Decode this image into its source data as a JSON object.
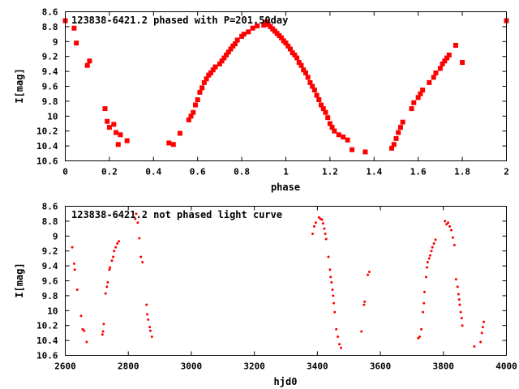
{
  "chart_data": [
    {
      "type": "scatter",
      "title": "123838-6421.2 phased with P=201.50day",
      "xlabel": "phase",
      "ylabel": "I[mag]",
      "xlim": [
        0,
        2
      ],
      "ylim": [
        10.6,
        8.6
      ],
      "x_ticks": [
        0,
        0.2,
        0.4,
        0.6,
        0.8,
        1,
        1.2,
        1.4,
        1.6,
        1.8,
        2
      ],
      "x_tick_labels": [
        "0",
        "0.2",
        "0.4",
        "0.6",
        "0.8",
        "1",
        "1.2",
        "1.4",
        "1.6",
        "1.8",
        "2"
      ],
      "y_ticks": [
        8.6,
        8.8,
        9,
        9.2,
        9.4,
        9.6,
        9.8,
        10,
        10.2,
        10.4,
        10.6
      ],
      "y_tick_labels": [
        "8.6",
        "8.8",
        "9",
        "9.2",
        "9.4",
        "9.6",
        "9.8",
        "10",
        "10.2",
        "10.4",
        "10.6"
      ],
      "marker": "square",
      "color": "#ff0000",
      "points": [
        [
          0.0,
          8.72
        ],
        [
          0.04,
          8.82
        ],
        [
          0.05,
          9.02
        ],
        [
          0.1,
          9.32
        ],
        [
          0.11,
          9.26
        ],
        [
          0.18,
          9.9
        ],
        [
          0.19,
          10.07
        ],
        [
          0.2,
          10.15
        ],
        [
          0.22,
          10.11
        ],
        [
          0.23,
          10.22
        ],
        [
          0.24,
          10.38
        ],
        [
          0.25,
          10.25
        ],
        [
          0.28,
          10.33
        ],
        [
          0.47,
          10.36
        ],
        [
          0.49,
          10.38
        ],
        [
          0.52,
          10.23
        ],
        [
          0.56,
          10.05
        ],
        [
          0.57,
          10.0
        ],
        [
          0.58,
          9.95
        ],
        [
          0.59,
          9.85
        ],
        [
          0.6,
          9.78
        ],
        [
          0.61,
          9.68
        ],
        [
          0.62,
          9.62
        ],
        [
          0.63,
          9.55
        ],
        [
          0.64,
          9.5
        ],
        [
          0.65,
          9.45
        ],
        [
          0.66,
          9.42
        ],
        [
          0.67,
          9.38
        ],
        [
          0.68,
          9.34
        ],
        [
          0.7,
          9.3
        ],
        [
          0.71,
          9.26
        ],
        [
          0.72,
          9.22
        ],
        [
          0.73,
          9.18
        ],
        [
          0.74,
          9.14
        ],
        [
          0.75,
          9.1
        ],
        [
          0.76,
          9.06
        ],
        [
          0.77,
          9.03
        ],
        [
          0.78,
          8.98
        ],
        [
          0.8,
          8.93
        ],
        [
          0.81,
          8.9
        ],
        [
          0.83,
          8.87
        ],
        [
          0.85,
          8.82
        ],
        [
          0.87,
          8.79
        ],
        [
          0.9,
          8.78
        ],
        [
          0.91,
          8.74
        ],
        [
          0.92,
          8.77
        ],
        [
          0.93,
          8.8
        ],
        [
          0.94,
          8.83
        ],
        [
          0.95,
          8.86
        ],
        [
          0.96,
          8.89
        ],
        [
          0.97,
          8.92
        ],
        [
          0.98,
          8.95
        ],
        [
          0.99,
          8.99
        ],
        [
          1.0,
          9.02
        ],
        [
          1.01,
          9.06
        ],
        [
          1.02,
          9.1
        ],
        [
          1.03,
          9.15
        ],
        [
          1.04,
          9.18
        ],
        [
          1.05,
          9.22
        ],
        [
          1.06,
          9.28
        ],
        [
          1.07,
          9.32
        ],
        [
          1.08,
          9.38
        ],
        [
          1.09,
          9.42
        ],
        [
          1.1,
          9.48
        ],
        [
          1.11,
          9.55
        ],
        [
          1.12,
          9.6
        ],
        [
          1.13,
          9.65
        ],
        [
          1.14,
          9.72
        ],
        [
          1.15,
          9.78
        ],
        [
          1.16,
          9.85
        ],
        [
          1.17,
          9.9
        ],
        [
          1.18,
          9.95
        ],
        [
          1.19,
          10.02
        ],
        [
          1.2,
          10.1
        ],
        [
          1.21,
          10.15
        ],
        [
          1.22,
          10.2
        ],
        [
          1.24,
          10.25
        ],
        [
          1.26,
          10.28
        ],
        [
          1.28,
          10.32
        ],
        [
          1.3,
          10.45
        ],
        [
          1.36,
          10.48
        ],
        [
          1.48,
          10.43
        ],
        [
          1.49,
          10.38
        ],
        [
          1.5,
          10.3
        ],
        [
          1.51,
          10.22
        ],
        [
          1.52,
          10.15
        ],
        [
          1.53,
          10.08
        ],
        [
          1.57,
          9.9
        ],
        [
          1.58,
          9.82
        ],
        [
          1.6,
          9.75
        ],
        [
          1.61,
          9.7
        ],
        [
          1.62,
          9.65
        ],
        [
          1.65,
          9.55
        ],
        [
          1.67,
          9.48
        ],
        [
          1.68,
          9.42
        ],
        [
          1.7,
          9.36
        ],
        [
          1.71,
          9.3
        ],
        [
          1.72,
          9.26
        ],
        [
          1.73,
          9.22
        ],
        [
          1.74,
          9.18
        ],
        [
          1.77,
          9.05
        ],
        [
          1.8,
          9.28
        ],
        [
          2.0,
          8.72
        ]
      ]
    },
    {
      "type": "scatter",
      "title": "123838-6421.2 not phased light curve",
      "xlabel": "hjd0",
      "ylabel": "I[mag]",
      "xlim": [
        2600,
        4000
      ],
      "ylim": [
        10.6,
        8.6
      ],
      "x_ticks": [
        2600,
        2800,
        3000,
        3200,
        3400,
        3600,
        3800,
        4000
      ],
      "x_tick_labels": [
        "2600",
        "2800",
        "3000",
        "3200",
        "3400",
        "3600",
        "3800",
        "4000"
      ],
      "y_ticks": [
        8.6,
        8.8,
        9,
        9.2,
        9.4,
        9.6,
        9.8,
        10,
        10.2,
        10.4,
        10.6
      ],
      "y_tick_labels": [
        "8.6",
        "8.8",
        "9",
        "9.2",
        "9.4",
        "9.6",
        "9.8",
        "10",
        "10.2",
        "10.4",
        "10.6"
      ],
      "marker": "dot",
      "color": "#ff0000",
      "points": [
        [
          2622,
          9.15
        ],
        [
          2628,
          9.37
        ],
        [
          2630,
          9.45
        ],
        [
          2638,
          9.72
        ],
        [
          2650,
          10.07
        ],
        [
          2655,
          10.25
        ],
        [
          2660,
          10.27
        ],
        [
          2668,
          10.42
        ],
        [
          2718,
          10.32
        ],
        [
          2720,
          10.28
        ],
        [
          2722,
          10.18
        ],
        [
          2728,
          9.77
        ],
        [
          2732,
          9.68
        ],
        [
          2735,
          9.62
        ],
        [
          2740,
          9.45
        ],
        [
          2742,
          9.42
        ],
        [
          2748,
          9.33
        ],
        [
          2752,
          9.28
        ],
        [
          2755,
          9.2
        ],
        [
          2760,
          9.15
        ],
        [
          2765,
          9.1
        ],
        [
          2770,
          9.07
        ],
        [
          2822,
          8.77
        ],
        [
          2825,
          8.7
        ],
        [
          2830,
          8.82
        ],
        [
          2835,
          9.03
        ],
        [
          2840,
          9.28
        ],
        [
          2845,
          9.35
        ],
        [
          2858,
          9.92
        ],
        [
          2860,
          10.05
        ],
        [
          2863,
          10.12
        ],
        [
          2868,
          10.22
        ],
        [
          2870,
          10.27
        ],
        [
          2875,
          10.35
        ],
        [
          3385,
          8.97
        ],
        [
          3390,
          8.87
        ],
        [
          3395,
          8.82
        ],
        [
          3405,
          8.75
        ],
        [
          3410,
          8.77
        ],
        [
          3415,
          8.78
        ],
        [
          3418,
          8.83
        ],
        [
          3422,
          8.9
        ],
        [
          3425,
          8.97
        ],
        [
          3428,
          9.04
        ],
        [
          3435,
          9.28
        ],
        [
          3440,
          9.45
        ],
        [
          3442,
          9.55
        ],
        [
          3445,
          9.62
        ],
        [
          3448,
          9.72
        ],
        [
          3450,
          9.8
        ],
        [
          3452,
          9.9
        ],
        [
          3455,
          10.02
        ],
        [
          3460,
          10.25
        ],
        [
          3465,
          10.35
        ],
        [
          3470,
          10.45
        ],
        [
          3475,
          10.5
        ],
        [
          3540,
          10.28
        ],
        [
          3548,
          9.92
        ],
        [
          3550,
          9.88
        ],
        [
          3560,
          9.52
        ],
        [
          3565,
          9.48
        ],
        [
          3720,
          10.37
        ],
        [
          3725,
          10.35
        ],
        [
          3730,
          10.25
        ],
        [
          3735,
          10.02
        ],
        [
          3738,
          9.9
        ],
        [
          3740,
          9.75
        ],
        [
          3745,
          9.55
        ],
        [
          3748,
          9.42
        ],
        [
          3750,
          9.35
        ],
        [
          3755,
          9.3
        ],
        [
          3758,
          9.26
        ],
        [
          3762,
          9.2
        ],
        [
          3765,
          9.15
        ],
        [
          3770,
          9.1
        ],
        [
          3775,
          9.05
        ],
        [
          3805,
          8.8
        ],
        [
          3810,
          8.84
        ],
        [
          3815,
          8.82
        ],
        [
          3820,
          8.87
        ],
        [
          3825,
          8.92
        ],
        [
          3830,
          9.02
        ],
        [
          3835,
          9.12
        ],
        [
          3840,
          9.58
        ],
        [
          3845,
          9.68
        ],
        [
          3848,
          9.78
        ],
        [
          3850,
          9.85
        ],
        [
          3852,
          9.92
        ],
        [
          3855,
          10.02
        ],
        [
          3858,
          10.1
        ],
        [
          3860,
          10.2
        ],
        [
          3898,
          10.48
        ],
        [
          3918,
          10.42
        ],
        [
          3922,
          10.3
        ],
        [
          3925,
          10.22
        ],
        [
          3928,
          10.15
        ]
      ]
    }
  ]
}
